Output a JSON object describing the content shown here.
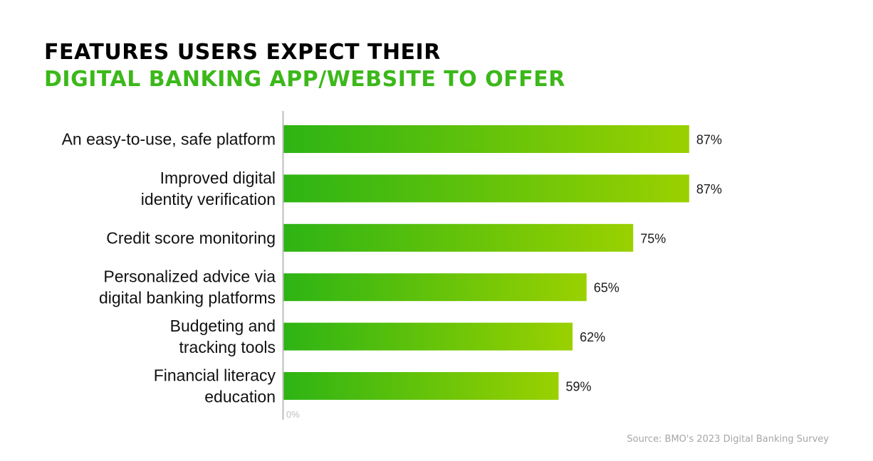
{
  "title": {
    "line1": "FEATURES USERS EXPECT THEIR",
    "line2": "DIGITAL BANKING APP/WEBSITE TO OFFER"
  },
  "source": "Source: BMO's 2023 Digital Banking Survey",
  "colors": {
    "title_primary": "#000000",
    "title_accent": "#3cb81a",
    "bar_gradient_start": "#2db414",
    "bar_gradient_end": "#9ad100",
    "axis": "#bdbdbd",
    "source_text": "#a6a6a6"
  },
  "chart_data": {
    "type": "bar",
    "orientation": "horizontal",
    "categories": [
      [
        "An easy-to-use, safe platform"
      ],
      [
        "Improved digital",
        "identity verification"
      ],
      [
        "Credit score monitoring"
      ],
      [
        "Personalized advice via",
        "digital banking platforms"
      ],
      [
        "Budgeting and",
        "tracking tools"
      ],
      [
        "Financial literacy",
        "education"
      ]
    ],
    "values": [
      87,
      87,
      75,
      65,
      62,
      59
    ],
    "value_labels": [
      "87%",
      "87%",
      "75%",
      "65%",
      "62%",
      "59%"
    ],
    "unit": "%",
    "xlim": [
      0,
      100
    ],
    "x_tick_labels": [
      "0%"
    ],
    "grid": false,
    "legend": "none"
  }
}
